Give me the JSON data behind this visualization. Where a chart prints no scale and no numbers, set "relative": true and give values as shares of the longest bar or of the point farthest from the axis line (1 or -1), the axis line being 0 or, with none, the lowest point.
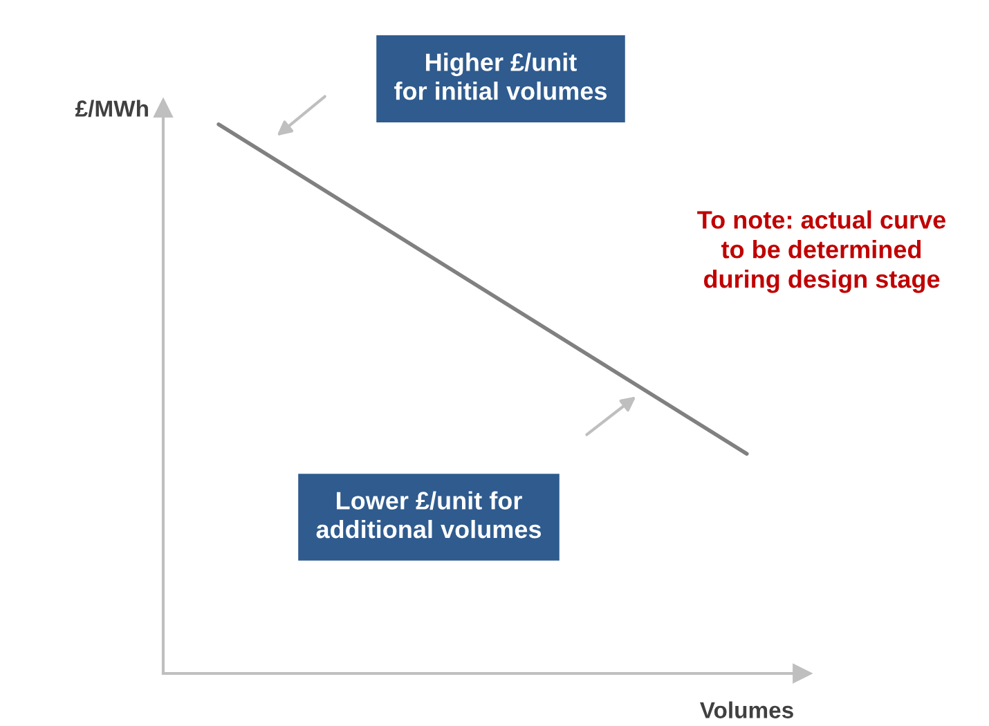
{
  "chart_data": {
    "type": "line",
    "relative": true,
    "categories": [
      null,
      null
    ],
    "ylabel": "£/MWh",
    "xlabel": "Volumes",
    "series": [
      {
        "color": "#808080",
        "values": [
          1,
          0.4
        ]
      }
    ],
    "annotations": [
      "Higher £/unit\nfor initial volumes",
      "Lower £/unit for\nadditional volumes",
      "To note: actual curve\nto be determined\nduring design stage"
    ],
    "legend": false,
    "grid": false
  }
}
